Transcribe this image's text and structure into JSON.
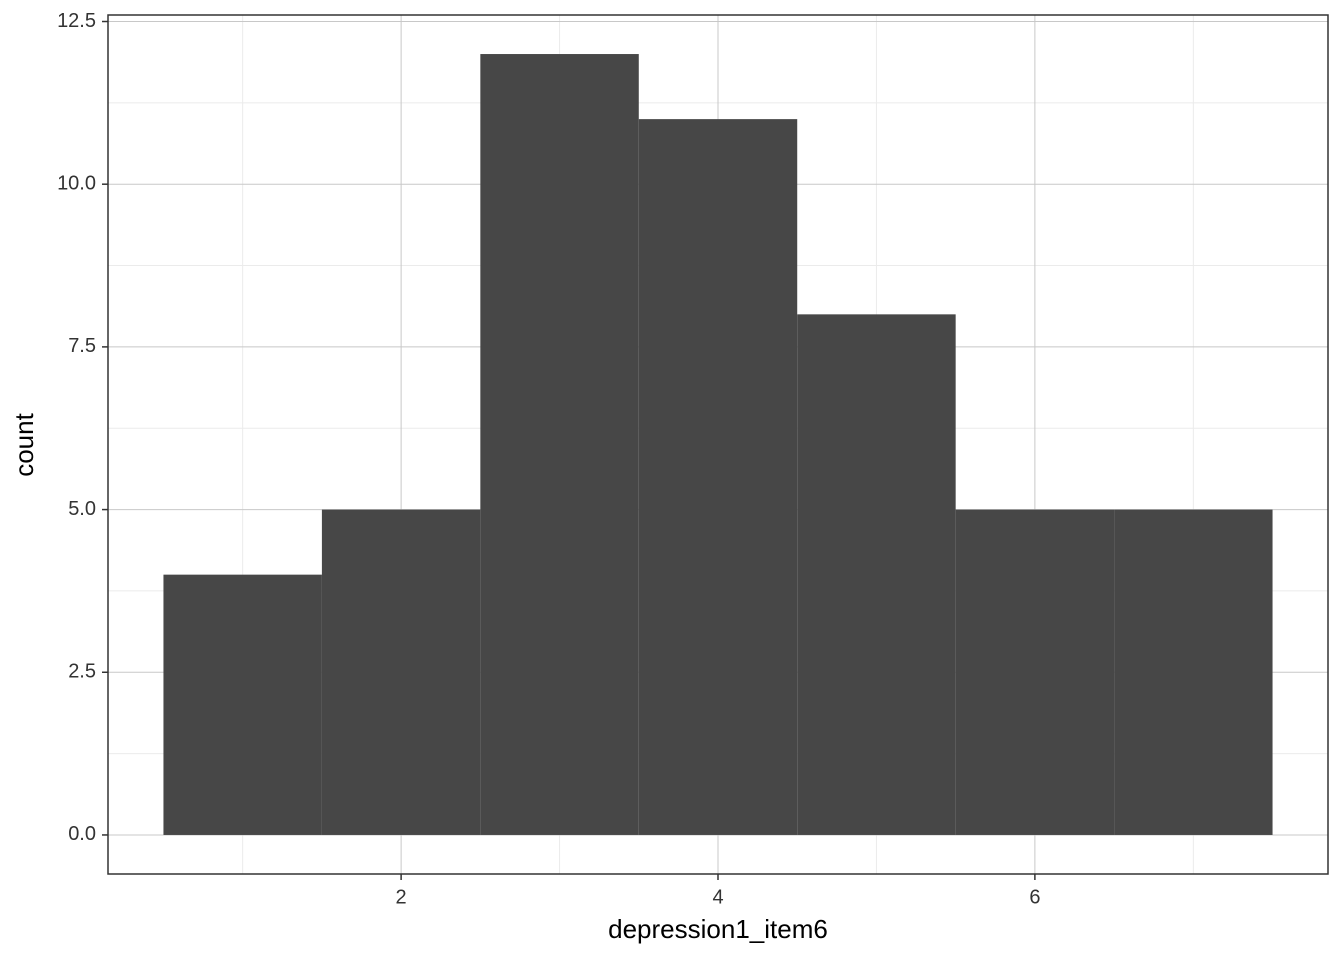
{
  "chart_data": {
    "type": "histogram",
    "x_label": "depression1_item6",
    "y_label": "count",
    "bins": [
      0.5,
      1.5,
      2.5,
      3.5,
      4.5,
      5.5,
      6.5,
      7.5
    ],
    "counts": [
      4,
      5,
      12,
      11,
      8,
      5,
      5
    ],
    "color": "#474747",
    "xlim": [
      0.15,
      7.85
    ],
    "xticks": [
      2,
      4,
      6
    ],
    "ylim": [
      -0.6,
      12.6
    ],
    "yticks": [
      {
        "value": 0,
        "label": "0.0"
      },
      {
        "value": 2.5,
        "label": "2.5"
      },
      {
        "value": 5,
        "label": "5.0"
      },
      {
        "value": 7.5,
        "label": "7.5"
      },
      {
        "value": 10,
        "label": "10.0"
      },
      {
        "value": 12.5,
        "label": "12.5"
      }
    ],
    "grid": true
  }
}
